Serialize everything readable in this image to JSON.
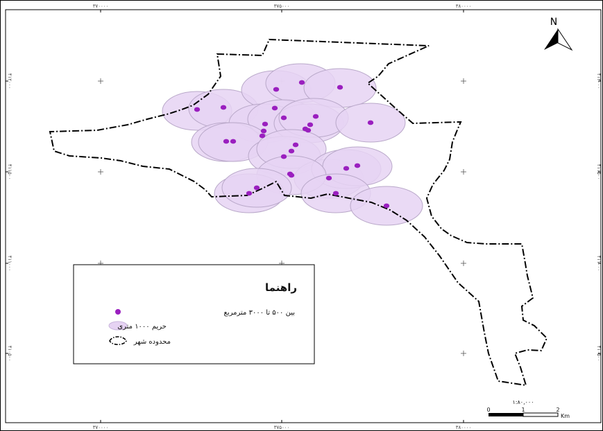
{
  "grid_labels": {
    "x_top": [
      "۳۷۰۰۰۰",
      "۳۷۵۰۰۰",
      "۳۸۰۰۰۰"
    ],
    "x_bottom": [
      "۳۷۰۰۰۰",
      "۳۷۵۰۰۰",
      "۳۸۰۰۰۰"
    ],
    "y_left": [
      "۴۱۲۰۰۰",
      "۴۱۱۵۰۰",
      "۴۱۱۰۰۰",
      "۴۱۰۵۰۰"
    ],
    "y_right": [
      "۴۱۲۰۰۰",
      "۴۱۱۵۰۰",
      "۴۱۱۰۰۰",
      "۴۱۰۵۰۰"
    ]
  },
  "north_arrow": {
    "label": "N",
    "icon": "north-arrow-icon"
  },
  "legend": {
    "title": "راهنما",
    "items": [
      {
        "label": "بین ۵۰۰ تا ۳۰۰۰ مترمربع",
        "icon": "purple-dot-icon",
        "color": "#9a1fbf"
      },
      {
        "label": "حریم ۱۰۰۰ متری",
        "icon": "lavender-circle-icon",
        "color": "#e6d3f3"
      },
      {
        "label": "محدوده شهر",
        "icon": "dash-dot-boundary-icon",
        "color": "#000000"
      }
    ]
  },
  "scale_bar": {
    "ratio": "۱:۸۰,۰۰۰",
    "ticks": [
      "0",
      "1",
      "2"
    ],
    "unit": "Km"
  },
  "colors": {
    "buffer_fill": "#e6d3f3",
    "buffer_stroke": "#b9a8c9",
    "point_fill": "#9a1fbf",
    "boundary": "#000000"
  }
}
